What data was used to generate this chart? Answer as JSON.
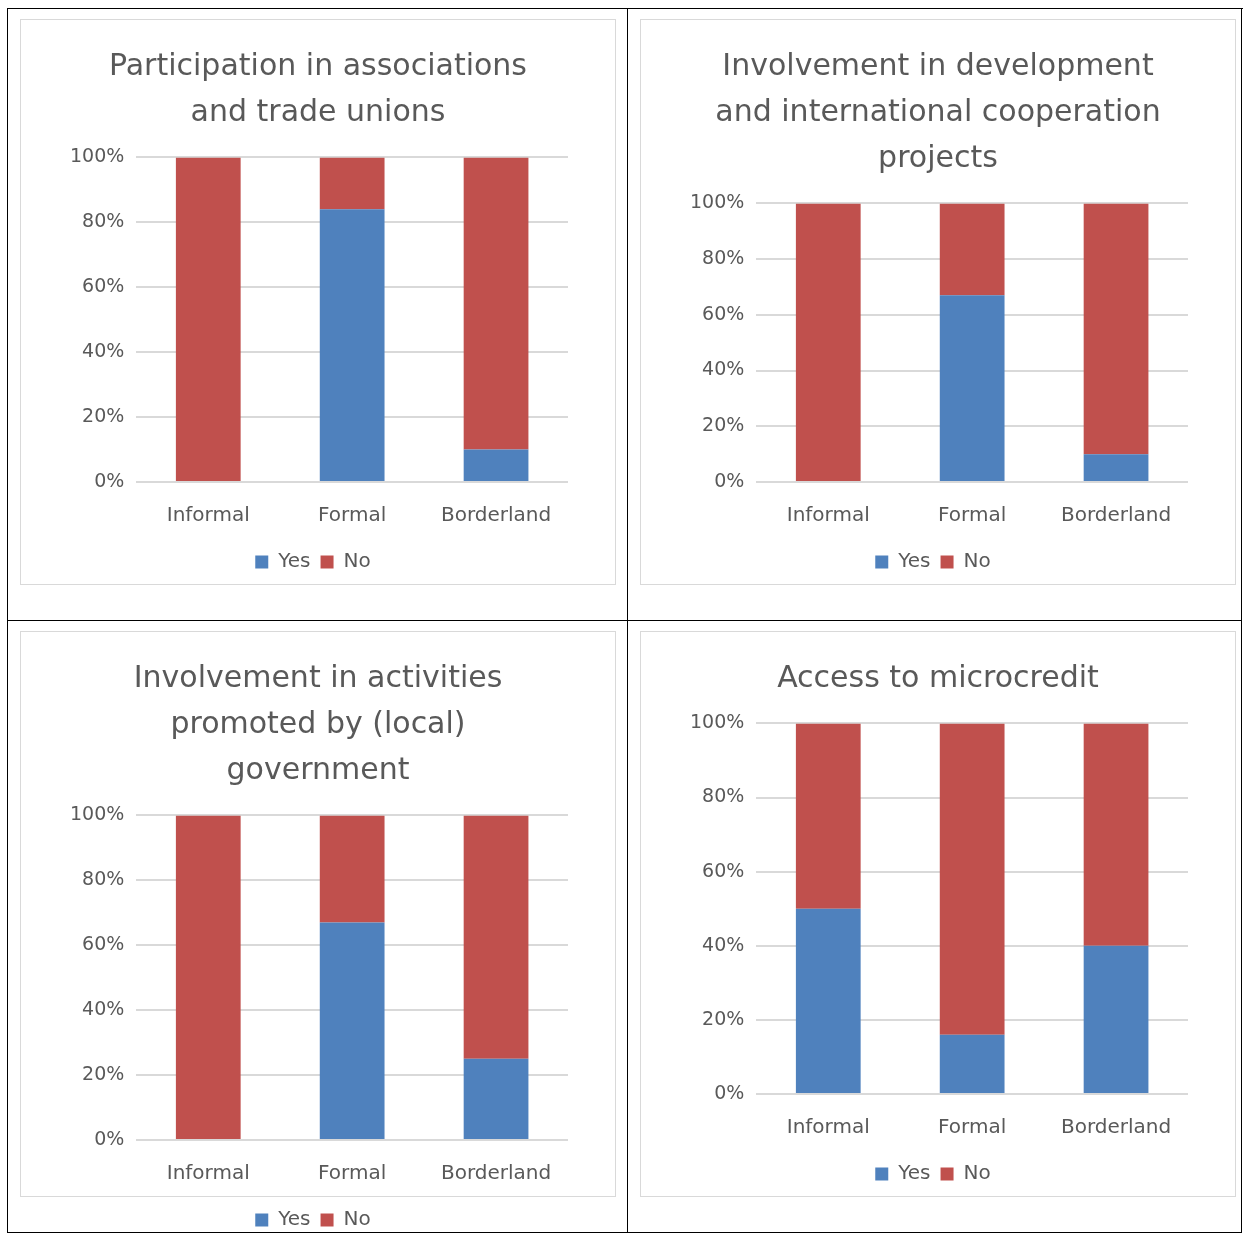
{
  "chart_data": [
    {
      "type": "bar",
      "title": "Participation in associations and trade unions",
      "stacked": true,
      "categories": [
        "Informal",
        "Formal",
        "Borderland"
      ],
      "series": [
        {
          "name": "Yes",
          "color": "#4f81bd",
          "values": [
            0,
            84,
            10
          ]
        },
        {
          "name": "No",
          "color": "#c0504d",
          "values": [
            100,
            16,
            90
          ]
        }
      ],
      "ylim": [
        0,
        100
      ],
      "yticks": [
        {
          "value": 0,
          "label": "0%"
        },
        {
          "value": 20,
          "label": "20%"
        },
        {
          "value": 40,
          "label": "40%"
        },
        {
          "value": 60,
          "label": "60%"
        },
        {
          "value": 80,
          "label": "80%"
        },
        {
          "value": 100,
          "label": "100%"
        }
      ],
      "grid": "y",
      "legend": "bottom"
    },
    {
      "type": "bar",
      "title": "Involvement in development and international cooperation projects",
      "stacked": true,
      "categories": [
        "Informal",
        "Formal",
        "Borderland"
      ],
      "series": [
        {
          "name": "Yes",
          "color": "#4f81bd",
          "values": [
            0,
            67,
            10
          ]
        },
        {
          "name": "No",
          "color": "#c0504d",
          "values": [
            100,
            33,
            90
          ]
        }
      ],
      "ylim": [
        0,
        100
      ],
      "yticks": [
        {
          "value": 0,
          "label": "0%"
        },
        {
          "value": 20,
          "label": "20%"
        },
        {
          "value": 40,
          "label": "40%"
        },
        {
          "value": 60,
          "label": "60%"
        },
        {
          "value": 80,
          "label": "80%"
        },
        {
          "value": 100,
          "label": "100%"
        }
      ],
      "grid": "y",
      "legend": "bottom"
    },
    {
      "type": "bar",
      "title": "Involvement in activities promoted by (local) government",
      "stacked": true,
      "categories": [
        "Informal",
        "Formal",
        "Borderland"
      ],
      "series": [
        {
          "name": "Yes",
          "color": "#4f81bd",
          "values": [
            0,
            67,
            25
          ]
        },
        {
          "name": "No",
          "color": "#c0504d",
          "values": [
            100,
            33,
            75
          ]
        }
      ],
      "ylim": [
        0,
        100
      ],
      "yticks": [
        {
          "value": 0,
          "label": "0%"
        },
        {
          "value": 20,
          "label": "20%"
        },
        {
          "value": 40,
          "label": "40%"
        },
        {
          "value": 60,
          "label": "60%"
        },
        {
          "value": 80,
          "label": "80%"
        },
        {
          "value": 100,
          "label": "100%"
        }
      ],
      "grid": "y",
      "legend": "bottom"
    },
    {
      "type": "bar",
      "title": "Access to microcredit",
      "stacked": true,
      "categories": [
        "Informal",
        "Formal",
        "Borderland"
      ],
      "series": [
        {
          "name": "Yes",
          "color": "#4f81bd",
          "values": [
            50,
            16,
            40
          ]
        },
        {
          "name": "No",
          "color": "#c0504d",
          "values": [
            50,
            84,
            60
          ]
        }
      ],
      "ylim": [
        0,
        100
      ],
      "yticks": [
        {
          "value": 0,
          "label": "0%"
        },
        {
          "value": 20,
          "label": "20%"
        },
        {
          "value": 40,
          "label": "40%"
        },
        {
          "value": 60,
          "label": "60%"
        },
        {
          "value": 80,
          "label": "80%"
        },
        {
          "value": 100,
          "label": "100%"
        }
      ],
      "grid": "y",
      "legend": "bottom"
    }
  ]
}
